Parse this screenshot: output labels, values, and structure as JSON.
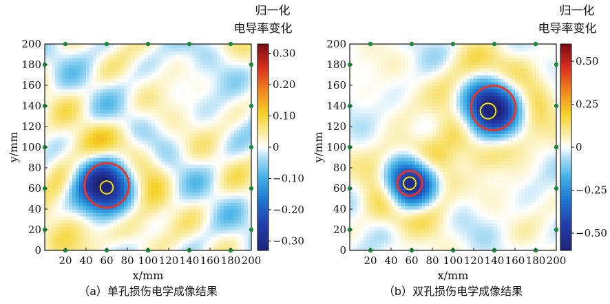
{
  "chart_data": [
    {
      "type": "heatmap",
      "caption": "（a）单孔损伤电学成像结果",
      "xlabel": "x/mm",
      "ylabel": "y/mm",
      "xlim": [
        0,
        200
      ],
      "ylim": [
        0,
        200
      ],
      "x_ticks": [
        20,
        40,
        60,
        80,
        100,
        120,
        140,
        160,
        180,
        200
      ],
      "y_ticks": [
        0,
        20,
        40,
        60,
        80,
        100,
        120,
        140,
        160,
        180,
        200
      ],
      "x_tick_labels": [
        "20",
        "40",
        "60",
        "80",
        "100",
        "120",
        "140",
        "160",
        "180",
        "200"
      ],
      "y_tick_labels": [
        "0",
        "20",
        "40",
        "60",
        "80",
        "100",
        "120",
        "140",
        "160",
        "180",
        "200"
      ],
      "colorbar": {
        "title_lines": [
          "归一化",
          "电导率变化"
        ],
        "range": [
          -0.33,
          0.33
        ],
        "ticks": [
          0.3,
          0.2,
          0.1,
          0,
          -0.1,
          -0.2,
          -0.3
        ],
        "tick_labels": [
          "0.30",
          "0.20",
          "0.10",
          "0",
          "−0.10",
          "−0.20",
          "−0.30"
        ]
      },
      "electrodes": {
        "top": [
          [
            20,
            200
          ],
          [
            60,
            200
          ],
          [
            100,
            200
          ],
          [
            140,
            200
          ],
          [
            180,
            200
          ]
        ],
        "bottom": [
          [
            20,
            0
          ],
          [
            60,
            0
          ],
          [
            100,
            0
          ],
          [
            140,
            0
          ],
          [
            180,
            0
          ]
        ],
        "left": [
          [
            0,
            20
          ],
          [
            0,
            60
          ],
          [
            0,
            100
          ],
          [
            0,
            140
          ],
          [
            0,
            180
          ]
        ],
        "right": [
          [
            200,
            20
          ],
          [
            200,
            60
          ],
          [
            200,
            100
          ],
          [
            200,
            140
          ],
          [
            200,
            180
          ]
        ],
        "color": "#1a8a3a"
      },
      "blobs": [
        {
          "cx": 58,
          "cy": 62,
          "sigma": 18,
          "value": -0.33,
          "label": "hole-1"
        }
      ],
      "rings": [
        {
          "cx": 60,
          "cy": 61,
          "r": 6.2,
          "color": "#f2e600"
        },
        {
          "cx": 60,
          "cy": 63,
          "r": 21.5,
          "color": "#e8332a"
        }
      ]
    },
    {
      "type": "heatmap",
      "caption": "（b）双孔损伤电学成像结果",
      "xlabel": "x/mm",
      "ylabel": "y/mm",
      "xlim": [
        0,
        200
      ],
      "ylim": [
        0,
        200
      ],
      "x_ticks": [
        20,
        40,
        60,
        80,
        100,
        120,
        140,
        160,
        180,
        200
      ],
      "y_ticks": [
        0,
        20,
        40,
        60,
        80,
        100,
        120,
        140,
        160,
        180,
        200
      ],
      "x_tick_labels": [
        "20",
        "40",
        "60",
        "80",
        "100",
        "120",
        "140",
        "160",
        "180",
        "200"
      ],
      "y_tick_labels": [
        "0",
        "20",
        "40",
        "60",
        "80",
        "100",
        "120",
        "140",
        "160",
        "180",
        "200"
      ],
      "colorbar": {
        "title_lines": [
          "归一化",
          "电导率变化"
        ],
        "range": [
          -0.6,
          0.6
        ],
        "ticks": [
          0.5,
          0.25,
          0,
          -0.25,
          -0.5
        ],
        "tick_labels": [
          "0.50",
          "0.25",
          "0",
          "−0.25",
          "−0.50"
        ]
      },
      "electrodes": {
        "top": [
          [
            20,
            200
          ],
          [
            60,
            200
          ],
          [
            100,
            200
          ],
          [
            140,
            200
          ],
          [
            180,
            200
          ]
        ],
        "bottom": [
          [
            20,
            0
          ],
          [
            60,
            0
          ],
          [
            100,
            0
          ],
          [
            140,
            0
          ],
          [
            180,
            0
          ]
        ],
        "left": [
          [
            0,
            20
          ],
          [
            0,
            60
          ],
          [
            0,
            100
          ],
          [
            0,
            140
          ],
          [
            0,
            180
          ]
        ],
        "right": [
          [
            200,
            20
          ],
          [
            200,
            60
          ],
          [
            200,
            100
          ],
          [
            200,
            140
          ],
          [
            200,
            180
          ]
        ],
        "color": "#1a8a3a"
      },
      "blobs": [
        {
          "cx": 138,
          "cy": 138,
          "sigma": 17,
          "value": -0.62,
          "label": "hole-1"
        },
        {
          "cx": 58,
          "cy": 65,
          "sigma": 14,
          "value": -0.55,
          "label": "hole-2"
        }
      ],
      "rings": [
        {
          "cx": 134,
          "cy": 135,
          "r": 7.5,
          "color": "#f2e600"
        },
        {
          "cx": 139,
          "cy": 138,
          "r": 21.5,
          "color": "#e8332a"
        },
        {
          "cx": 58,
          "cy": 65,
          "r": 6,
          "color": "#f2e600"
        },
        {
          "cx": 58,
          "cy": 65,
          "r": 12,
          "color": "#e8332a"
        }
      ]
    }
  ]
}
